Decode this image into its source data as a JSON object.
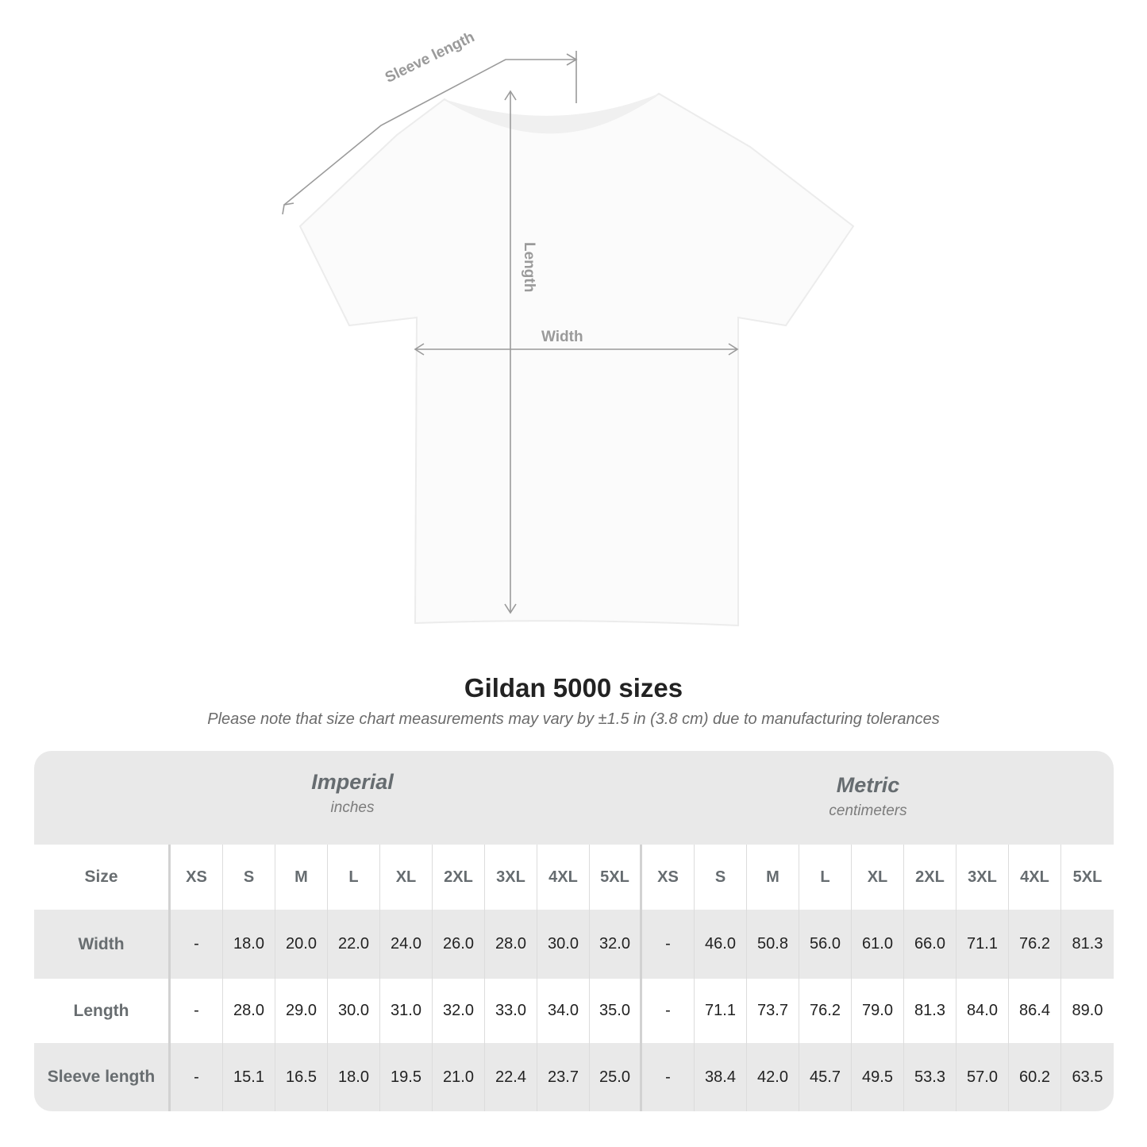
{
  "diagram": {
    "labels": {
      "sleeve": "Sleeve length",
      "length": "Length",
      "width": "Width"
    }
  },
  "title": "Gildan 5000 sizes",
  "note": "Please note that size chart measurements may vary by ±1.5 in (3.8 cm) due to manufacturing tolerances",
  "units": [
    {
      "name": "Imperial",
      "sub": "inches"
    },
    {
      "name": "Metric",
      "sub": "centimeters"
    }
  ],
  "size_label": "Size",
  "sizes": [
    "XS",
    "S",
    "M",
    "L",
    "XL",
    "2XL",
    "3XL",
    "4XL",
    "5XL"
  ],
  "rows": [
    {
      "label": "Width",
      "imperial": [
        "-",
        "18.0",
        "20.0",
        "22.0",
        "24.0",
        "26.0",
        "28.0",
        "30.0",
        "32.0"
      ],
      "metric": [
        "-",
        "46.0",
        "50.8",
        "56.0",
        "61.0",
        "66.0",
        "71.1",
        "76.2",
        "81.3"
      ]
    },
    {
      "label": "Length",
      "imperial": [
        "-",
        "28.0",
        "29.0",
        "30.0",
        "31.0",
        "32.0",
        "33.0",
        "34.0",
        "35.0"
      ],
      "metric": [
        "-",
        "71.1",
        "73.7",
        "76.2",
        "79.0",
        "81.3",
        "84.0",
        "86.4",
        "89.0"
      ]
    },
    {
      "label": "Sleeve length",
      "imperial": [
        "-",
        "15.1",
        "16.5",
        "18.0",
        "19.5",
        "21.0",
        "22.4",
        "23.7",
        "25.0"
      ],
      "metric": [
        "-",
        "38.4",
        "42.0",
        "45.7",
        "49.5",
        "53.3",
        "57.0",
        "60.2",
        "63.5"
      ]
    }
  ],
  "colors": {
    "table_bg": "#e9e9e9",
    "header_text": "#666c70",
    "arrow": "#9a9a9a"
  }
}
